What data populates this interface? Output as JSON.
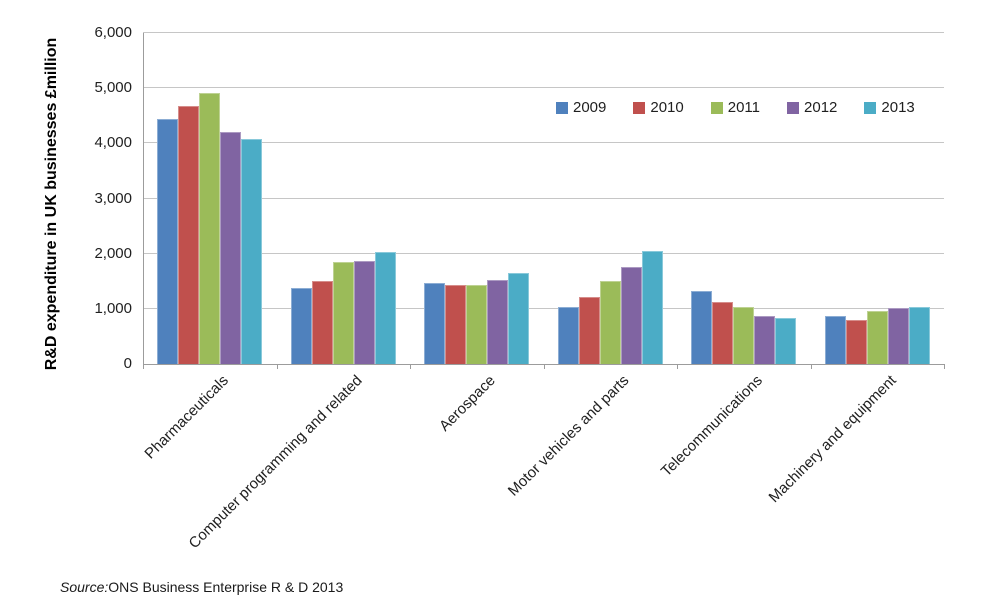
{
  "chart_data": {
    "type": "bar",
    "title": "",
    "xlabel": "",
    "ylabel": "R&D expenditure in UK businesses £million",
    "ylim": [
      0,
      6000
    ],
    "y_ticks": [
      0,
      1000,
      2000,
      3000,
      4000,
      5000,
      6000
    ],
    "y_tick_labels": [
      "0",
      "1,000",
      "2,000",
      "3,000",
      "4,000",
      "5,000",
      "6,000"
    ],
    "grid": true,
    "legend_position": "top-right-inside",
    "categories": [
      "Pharmaceuticals",
      "Computer programming and related",
      "Aerospace",
      "Motor vehicles and parts",
      "Telecommunications",
      "Machinery and equipment"
    ],
    "series": [
      {
        "name": "2009",
        "color": "#4F81BD",
        "values": [
          4440,
          1380,
          1470,
          1030,
          1320,
          870
        ]
      },
      {
        "name": "2010",
        "color": "#C0504D",
        "values": [
          4670,
          1510,
          1440,
          1220,
          1120,
          800
        ]
      },
      {
        "name": "2011",
        "color": "#9BBB59",
        "values": [
          4920,
          1850,
          1440,
          1510,
          1040,
          960
        ]
      },
      {
        "name": "2012",
        "color": "#8064A2",
        "values": [
          4200,
          1870,
          1530,
          1760,
          870,
          1020
        ]
      },
      {
        "name": "2013",
        "color": "#4BACC6",
        "values": [
          4080,
          2030,
          1650,
          2050,
          830,
          1030
        ]
      }
    ]
  },
  "source_note": {
    "prefix": "Source:",
    "text": "ONS Business Enterprise R & D 2013"
  }
}
